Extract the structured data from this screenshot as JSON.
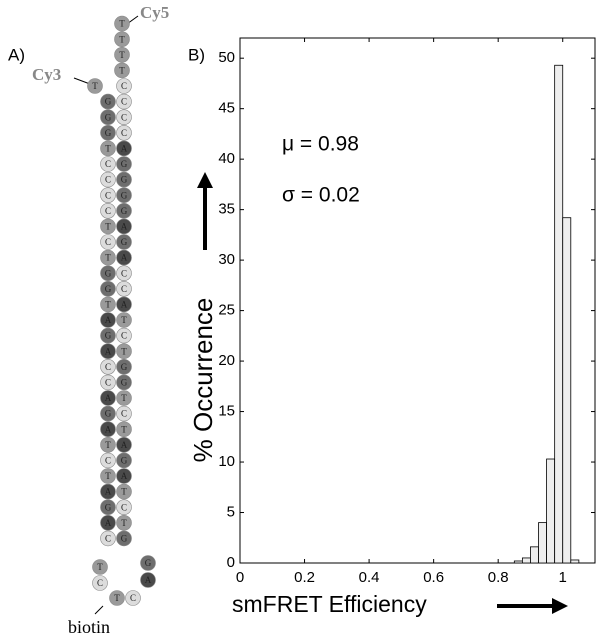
{
  "diagram": {
    "panel_label": "A)",
    "donor": "Cy3",
    "acceptor": "Cy5",
    "anchor": "biotin",
    "left_strand": [
      "T",
      "G",
      "G",
      "G",
      "T",
      "C",
      "C",
      "C",
      "C",
      "T",
      "C",
      "T",
      "G",
      "G",
      "T",
      "A",
      "G",
      "A",
      "C",
      "C",
      "A",
      "G",
      "A",
      "T",
      "C",
      "T",
      "A",
      "G",
      "A",
      "C"
    ],
    "right_strand": [
      "T",
      "T",
      "T",
      "T",
      "C",
      "C",
      "C",
      "C",
      "A",
      "G",
      "G",
      "G",
      "G",
      "A",
      "G",
      "A",
      "C",
      "C",
      "A",
      "T",
      "C",
      "T",
      "G",
      "G",
      "T",
      "C",
      "T",
      "A",
      "G",
      "A",
      "T",
      "C",
      "T",
      "G"
    ],
    "loop": [
      "T",
      "C",
      "T",
      "C",
      "A",
      "G"
    ]
  },
  "chart_data": {
    "type": "histogram",
    "panel_label": "B)",
    "x_label": "smFRET Efficiency",
    "y_label": "% Occurrence",
    "annotations": [
      "μ = 0.98",
      "σ = 0.02"
    ],
    "bins": [
      0.85,
      0.875,
      0.9,
      0.925,
      0.95,
      0.975,
      1.0,
      1.025,
      1.05
    ],
    "values": [
      0.2,
      0.5,
      1.6,
      4.0,
      10.3,
      49.3,
      34.2,
      0.3
    ],
    "color": "#eeeeee",
    "xlim": [
      0,
      1.1
    ],
    "xticks": [
      0,
      0.2,
      0.4,
      0.6,
      0.8,
      1
    ],
    "ylim": [
      0,
      52
    ],
    "yticks": [
      0,
      5,
      10,
      15,
      20,
      25,
      30,
      35,
      40,
      45,
      50
    ]
  }
}
